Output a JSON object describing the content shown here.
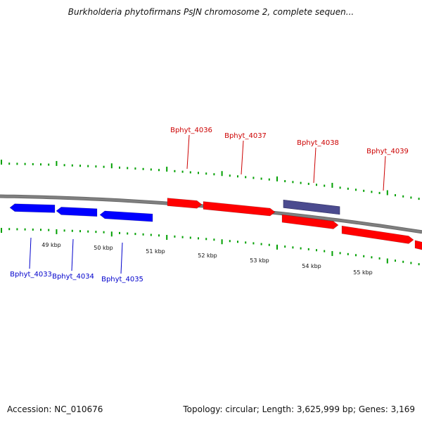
{
  "title": "Burkholderia phytofirmans PsJN chromosome 2, complete sequen...",
  "footer": {
    "accession": "Accession: NC_010676",
    "topology": "Topology: circular; Length: 3,625,999 bp; Genes: 3,169"
  },
  "colors": {
    "forward_gene": "#ff0000",
    "reverse_gene": "#0000ff",
    "selected_gene": "#4b4b8f",
    "backbone": "#808080",
    "tick": "#00a000"
  },
  "scale_labels": [
    "49 kbp",
    "50 kbp",
    "51 kbp",
    "52 kbp",
    "53 kbp",
    "54 kbp",
    "55 kbp"
  ],
  "genes": [
    {
      "name": "Bphyt_4033",
      "strand": "reverse"
    },
    {
      "name": "Bphyt_4034",
      "strand": "reverse"
    },
    {
      "name": "Bphyt_4035",
      "strand": "reverse"
    },
    {
      "name": "Bphyt_4036",
      "strand": "forward"
    },
    {
      "name": "Bphyt_4037",
      "strand": "forward"
    },
    {
      "name": "Bphyt_4038",
      "strand": "forward",
      "highlighted": true
    },
    {
      "name": "Bphyt_4039",
      "strand": "forward"
    }
  ]
}
